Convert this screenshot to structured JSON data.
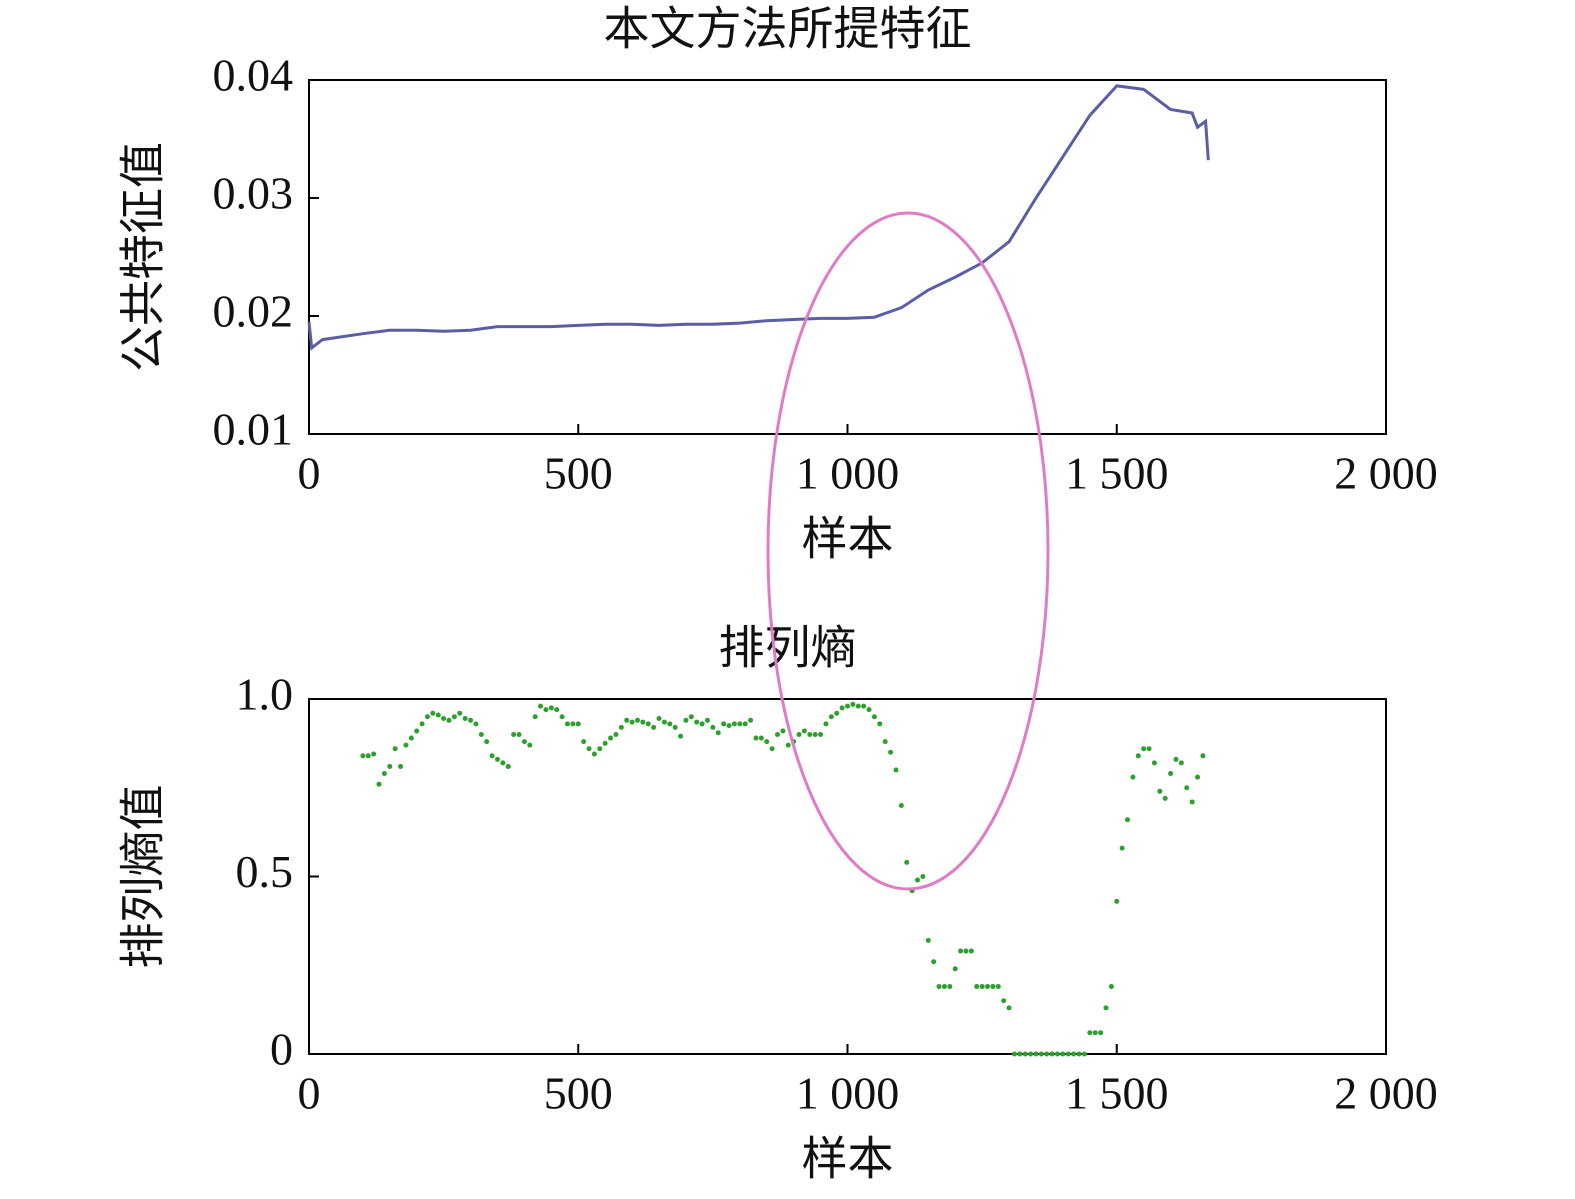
{
  "chart_data": [
    {
      "type": "line",
      "title": "本文方法所提特征",
      "x_label": "样本",
      "y_label": "公共特征值",
      "xlim": [
        0,
        2000
      ],
      "xticks": [
        0,
        500,
        {
          "value": 1000,
          "label": "1 000"
        },
        {
          "value": 1500,
          "label": "1 500"
        },
        {
          "value": 2000,
          "label": "2 000"
        }
      ],
      "ylim": [
        0.01,
        0.04
      ],
      "yticks": [
        0.01,
        0.02,
        0.03,
        0.04
      ],
      "series": [
        {
          "color": "#5b5ea6",
          "x": [
            0,
            5,
            25,
            100,
            150,
            200,
            250,
            300,
            350,
            400,
            450,
            500,
            550,
            600,
            650,
            700,
            750,
            800,
            850,
            900,
            950,
            1000,
            1050,
            1100,
            1150,
            1200,
            1250,
            1300,
            1350,
            1400,
            1450,
            1500,
            1550,
            1600,
            1640,
            1650,
            1665,
            1670
          ],
          "values": [
            0.0195,
            0.0173,
            0.018,
            0.0185,
            0.0188,
            0.0188,
            0.0187,
            0.0188,
            0.0191,
            0.0191,
            0.0191,
            0.0192,
            0.0193,
            0.0193,
            0.0192,
            0.0193,
            0.0193,
            0.0194,
            0.0196,
            0.0197,
            0.0198,
            0.0198,
            0.0199,
            0.0207,
            0.0222,
            0.0233,
            0.0245,
            0.0263,
            0.03,
            0.0335,
            0.037,
            0.0395,
            0.0392,
            0.0375,
            0.0372,
            0.036,
            0.0365,
            0.0332
          ]
        }
      ]
    },
    {
      "type": "scatter",
      "title": "排列熵",
      "x_label": "样本",
      "y_label": "排列熵值",
      "xlim": [
        0,
        2000
      ],
      "xticks": [
        0,
        500,
        {
          "value": 1000,
          "label": "1 000"
        },
        {
          "value": 1500,
          "label": "1 500"
        },
        {
          "value": 2000,
          "label": "2 000"
        }
      ],
      "ylim": [
        0,
        1
      ],
      "yticks": [
        0,
        0.5,
        {
          "value": 1,
          "label": "1.0"
        }
      ],
      "series": [
        {
          "color": "#2ca02c",
          "x": [
            100,
            110,
            120,
            130,
            140,
            150,
            160,
            170,
            180,
            190,
            200,
            210,
            220,
            230,
            240,
            250,
            260,
            270,
            280,
            290,
            300,
            310,
            320,
            330,
            340,
            350,
            360,
            370,
            380,
            390,
            400,
            410,
            420,
            430,
            440,
            450,
            460,
            470,
            480,
            490,
            500,
            510,
            520,
            530,
            540,
            550,
            560,
            570,
            580,
            590,
            600,
            610,
            620,
            630,
            640,
            650,
            660,
            670,
            680,
            690,
            700,
            710,
            720,
            730,
            740,
            750,
            760,
            770,
            780,
            790,
            800,
            810,
            820,
            830,
            840,
            850,
            860,
            870,
            880,
            890,
            900,
            910,
            920,
            930,
            940,
            950,
            960,
            970,
            980,
            990,
            1000,
            1010,
            1020,
            1030,
            1040,
            1050,
            1060,
            1070,
            1080,
            1090,
            1100,
            1110,
            1120,
            1130,
            1140,
            1150,
            1160,
            1170,
            1180,
            1190,
            1200,
            1210,
            1220,
            1230,
            1240,
            1250,
            1260,
            1270,
            1280,
            1290,
            1300,
            1310,
            1320,
            1330,
            1340,
            1350,
            1360,
            1370,
            1380,
            1390,
            1400,
            1410,
            1420,
            1430,
            1440,
            1450,
            1460,
            1470,
            1480,
            1490,
            1500,
            1510,
            1520,
            1530,
            1540,
            1550,
            1560,
            1570,
            1580,
            1590,
            1600,
            1610,
            1620,
            1630,
            1640,
            1650,
            1660
          ],
          "values": [
            0.84,
            0.84,
            0.845,
            0.76,
            0.79,
            0.81,
            0.86,
            0.81,
            0.87,
            0.89,
            0.91,
            0.93,
            0.95,
            0.96,
            0.955,
            0.945,
            0.94,
            0.95,
            0.96,
            0.945,
            0.94,
            0.93,
            0.9,
            0.88,
            0.84,
            0.83,
            0.82,
            0.81,
            0.9,
            0.9,
            0.88,
            0.87,
            0.95,
            0.98,
            0.97,
            0.975,
            0.97,
            0.95,
            0.93,
            0.93,
            0.93,
            0.88,
            0.86,
            0.845,
            0.86,
            0.875,
            0.89,
            0.9,
            0.92,
            0.94,
            0.935,
            0.94,
            0.935,
            0.93,
            0.92,
            0.945,
            0.935,
            0.93,
            0.92,
            0.895,
            0.94,
            0.95,
            0.935,
            0.93,
            0.94,
            0.92,
            0.905,
            0.93,
            0.925,
            0.93,
            0.93,
            0.93,
            0.94,
            0.89,
            0.89,
            0.88,
            0.86,
            0.9,
            0.91,
            0.87,
            0.88,
            0.9,
            0.91,
            0.9,
            0.9,
            0.9,
            0.93,
            0.95,
            0.96,
            0.975,
            0.98,
            0.985,
            0.98,
            0.98,
            0.97,
            0.95,
            0.93,
            0.88,
            0.85,
            0.8,
            0.7,
            0.54,
            0.46,
            0.49,
            0.5,
            0.32,
            0.26,
            0.19,
            0.19,
            0.19,
            0.24,
            0.29,
            0.29,
            0.29,
            0.19,
            0.19,
            0.19,
            0.19,
            0.19,
            0.15,
            0.13,
            0,
            0,
            0,
            0,
            0,
            0,
            0,
            0,
            0,
            0,
            0,
            0,
            0,
            0,
            0.06,
            0.06,
            0.06,
            0.13,
            0.19,
            0.43,
            0.58,
            0.66,
            0.78,
            0.84,
            0.86,
            0.86,
            0.82,
            0.74,
            0.72,
            0.79,
            0.83,
            0.82,
            0.75,
            0.71,
            0.78,
            0.84
          ]
        }
      ]
    }
  ]
}
